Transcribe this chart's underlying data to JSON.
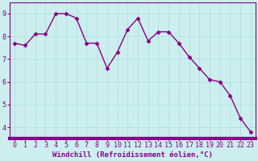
{
  "x": [
    0,
    1,
    2,
    3,
    4,
    5,
    6,
    7,
    8,
    9,
    10,
    11,
    12,
    13,
    14,
    15,
    16,
    17,
    18,
    19,
    20,
    21,
    22,
    23
  ],
  "y": [
    7.7,
    7.6,
    8.1,
    8.1,
    9.0,
    9.0,
    8.8,
    7.7,
    7.7,
    6.6,
    7.3,
    8.3,
    8.8,
    7.8,
    8.2,
    8.2,
    7.7,
    7.1,
    6.6,
    6.1,
    6.0,
    5.4,
    4.4,
    3.8
  ],
  "line_color": "#880088",
  "marker": "D",
  "markersize": 2.5,
  "linewidth": 1.0,
  "background_color": "#cceeee",
  "grid_color": "#aadddd",
  "xlabel": "Windchill (Refroidissement éolien,°C)",
  "xlabel_color": "#880088",
  "xlabel_fontsize": 6.5,
  "tick_color": "#880088",
  "tick_fontsize": 6,
  "ylim": [
    3.5,
    9.5
  ],
  "yticks": [
    4,
    5,
    6,
    7,
    8,
    9
  ],
  "xtick_labels": [
    "0",
    "1",
    "2",
    "3",
    "4",
    "5",
    "6",
    "7",
    "8",
    "9",
    "10",
    "11",
    "12",
    "13",
    "14",
    "15",
    "16",
    "17",
    "18",
    "19",
    "20",
    "21",
    "22",
    "23"
  ],
  "xlim": [
    -0.5,
    23.5
  ],
  "spine_color": "#880088",
  "bottom_bar_color": "#880088"
}
